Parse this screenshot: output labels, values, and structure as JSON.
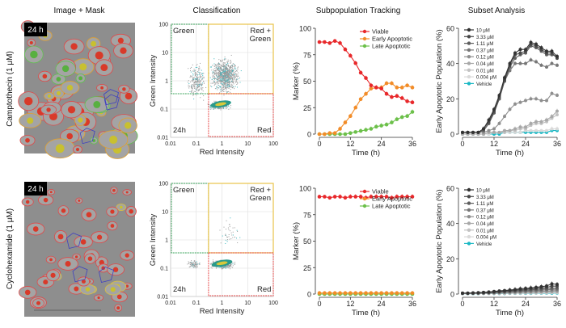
{
  "column_titles": [
    "Image + Mask",
    "Classification",
    "Subpopulation Tracking",
    "Subset Analysis"
  ],
  "rows": [
    {
      "label": "Camptothecin (1 μM)",
      "image_badge": "24 h"
    },
    {
      "label": "Cyclohexamide (1 μM)",
      "image_badge": "24 h"
    }
  ],
  "colors": {
    "viable": "#e8282b",
    "early": "#f28c28",
    "late": "#6cc04a",
    "vehicle": "#1ab8c4",
    "gate_green": "#3aa35a",
    "gate_yellow": "#e9c34a",
    "gate_red": "#e84a4a"
  },
  "chart_data": [
    {
      "type": "scatter",
      "panel": "Classification",
      "row": 0,
      "xlabel": "Red Intensity",
      "ylabel": "Green Intensity",
      "xscale": "log",
      "yscale": "log",
      "xlim": [
        0.01,
        100
      ],
      "ylim": [
        0.01,
        100
      ],
      "xticks": [
        "0.01",
        "0.1",
        "1",
        "10",
        "100"
      ],
      "yticks": [
        "0.01",
        "0.1",
        "1",
        "10",
        "100"
      ],
      "gates": {
        "green": "Green",
        "yellow": "Red + Green",
        "red": "Red"
      },
      "gate_thresholds": {
        "red": 0.3,
        "green": 0.35
      },
      "annotation": "24h",
      "grid": true
    },
    {
      "type": "scatter",
      "panel": "Classification",
      "row": 1,
      "xlabel": "Red Intensity",
      "ylabel": "Green Intensity",
      "xscale": "log",
      "yscale": "log",
      "xlim": [
        0.01,
        100
      ],
      "ylim": [
        0.01,
        100
      ],
      "xticks": [
        "0.01",
        "0.1",
        "1",
        "10",
        "100"
      ],
      "yticks": [
        "0.01",
        "0.1",
        "1",
        "10",
        "100"
      ],
      "gates": {
        "green": "Green",
        "yellow": "Red + Green",
        "red": "Red"
      },
      "gate_thresholds": {
        "red": 0.3,
        "green": 0.35
      },
      "annotation": "24h",
      "grid": true
    },
    {
      "type": "line",
      "panel": "Subpopulation Tracking",
      "row": 0,
      "xlabel": "Time (h)",
      "ylabel": "Marker (%)",
      "xlim": [
        0,
        36
      ],
      "ylim": [
        0,
        100
      ],
      "xticks": [
        0,
        12,
        24,
        36
      ],
      "yticks": [
        0,
        25,
        50,
        75,
        100
      ],
      "legend": "top-right",
      "x": [
        0,
        2,
        4,
        6,
        8,
        10,
        12,
        14,
        16,
        18,
        20,
        22,
        24,
        26,
        28,
        30,
        32,
        34,
        36
      ],
      "series": [
        {
          "name": "Viable",
          "color": "#e8282b",
          "values": [
            87,
            87,
            86,
            88,
            86,
            80,
            74,
            67,
            58,
            53,
            46,
            44,
            43,
            38,
            35,
            36,
            34,
            31,
            30
          ]
        },
        {
          "name": "Early Apoptotic",
          "color": "#f28c28",
          "values": [
            0,
            0,
            1,
            1,
            5,
            11,
            17,
            25,
            33,
            38,
            43,
            44,
            44,
            48,
            48,
            44,
            44,
            46,
            44
          ]
        },
        {
          "name": "Late Apoptotic",
          "color": "#6cc04a",
          "values": [
            0,
            0,
            0,
            0,
            0,
            0,
            1,
            2,
            3,
            4,
            5,
            7,
            8,
            9,
            11,
            14,
            16,
            17,
            21
          ]
        }
      ]
    },
    {
      "type": "line",
      "panel": "Subpopulation Tracking",
      "row": 1,
      "xlabel": "Time (h)",
      "ylabel": "Marker (%)",
      "xlim": [
        0,
        36
      ],
      "ylim": [
        0,
        100
      ],
      "xticks": [
        0,
        12,
        24,
        36
      ],
      "yticks": [
        0,
        25,
        50,
        75,
        100
      ],
      "legend": "top-right",
      "x": [
        0,
        2,
        4,
        6,
        8,
        10,
        12,
        14,
        16,
        18,
        20,
        22,
        24,
        26,
        28,
        30,
        32,
        34,
        36
      ],
      "series": [
        {
          "name": "Viable",
          "color": "#e8282b",
          "values": [
            92,
            92,
            91,
            92,
            92,
            91,
            92,
            92,
            92,
            91,
            92,
            92,
            92,
            92,
            91,
            92,
            92,
            92,
            92
          ]
        },
        {
          "name": "Early Apoptotic",
          "color": "#f28c28",
          "values": [
            1,
            1,
            1,
            1,
            1,
            1,
            1,
            1,
            1,
            1,
            1,
            1,
            1,
            1,
            1,
            1,
            1,
            1,
            1
          ]
        },
        {
          "name": "Late Apoptotic",
          "color": "#6cc04a",
          "values": [
            0,
            0,
            0,
            0,
            0,
            0,
            0,
            0,
            0,
            0,
            0,
            0,
            0,
            0,
            0,
            0,
            0,
            0,
            0
          ]
        }
      ]
    },
    {
      "type": "line",
      "panel": "Subset Analysis",
      "row": 0,
      "xlabel": "Time (h)",
      "ylabel": "Early Apoptotic Population (%)",
      "xlim": [
        0,
        36
      ],
      "ylim": [
        0,
        60
      ],
      "xticks": [
        0,
        12,
        24,
        36
      ],
      "yticks": [
        0,
        20,
        40,
        60
      ],
      "legend": "top-left",
      "x": [
        0,
        2,
        4,
        6,
        8,
        10,
        12,
        14,
        16,
        18,
        20,
        22,
        24,
        26,
        28,
        30,
        32,
        34,
        36
      ],
      "series": [
        {
          "name": "10 μM",
          "color": "#333333",
          "values": [
            1,
            1,
            1,
            1,
            3,
            8,
            14,
            22,
            32,
            40,
            46,
            48,
            48,
            52,
            51,
            49,
            47,
            47,
            44
          ]
        },
        {
          "name": "3.33 μM",
          "color": "#484848",
          "values": [
            1,
            1,
            1,
            1,
            3,
            7,
            13,
            21,
            31,
            39,
            45,
            46,
            47,
            51,
            50,
            48,
            46,
            46,
            43
          ]
        },
        {
          "name": "1.11 μM",
          "color": "#5e5e5e",
          "values": [
            1,
            1,
            1,
            1,
            2,
            6,
            12,
            20,
            30,
            38,
            43,
            45,
            46,
            50,
            49,
            47,
            45,
            45,
            44
          ]
        },
        {
          "name": "0.37 μM",
          "color": "#777777",
          "values": [
            1,
            1,
            1,
            1,
            2,
            6,
            12,
            20,
            30,
            36,
            40,
            40,
            40,
            42,
            41,
            39,
            38,
            40,
            39
          ]
        },
        {
          "name": "0.12 μM",
          "color": "#8f8f8f",
          "values": [
            1,
            1,
            1,
            1,
            1,
            2,
            3,
            6,
            10,
            14,
            17,
            18,
            19,
            20,
            20,
            19,
            19,
            23,
            22
          ]
        },
        {
          "name": "0.04 μM",
          "color": "#a8a8a8",
          "values": [
            0,
            0,
            0,
            0,
            0,
            1,
            1,
            1,
            2,
            2,
            3,
            4,
            4,
            6,
            7,
            7,
            8,
            10,
            13
          ]
        },
        {
          "name": "0.01 μM",
          "color": "#c2c2c2",
          "values": [
            0,
            0,
            0,
            0,
            0,
            1,
            1,
            1,
            1,
            2,
            2,
            3,
            3,
            5,
            6,
            6,
            7,
            9,
            11
          ]
        },
        {
          "name": "0.004 μM",
          "color": "#dadada",
          "values": [
            0,
            0,
            0,
            0,
            0,
            0,
            1,
            1,
            1,
            1,
            1,
            1,
            2,
            2,
            2,
            2,
            2,
            3,
            3
          ]
        },
        {
          "name": "Vehicle",
          "color": "#1ab8c4",
          "values": [
            0,
            0,
            0,
            0,
            0,
            0,
            0,
            0,
            1,
            1,
            1,
            1,
            1,
            1,
            1,
            1,
            1,
            2,
            2
          ]
        }
      ]
    },
    {
      "type": "line",
      "panel": "Subset Analysis",
      "row": 1,
      "xlabel": "Time (h)",
      "ylabel": "Early Apoptotic Population (%)",
      "xlim": [
        0,
        36
      ],
      "ylim": [
        0,
        60
      ],
      "xticks": [
        0,
        12,
        24,
        36
      ],
      "yticks": [
        0,
        20,
        40,
        60
      ],
      "legend": "top-left",
      "x": [
        0,
        2,
        4,
        6,
        8,
        10,
        12,
        14,
        16,
        18,
        20,
        22,
        24,
        26,
        28,
        30,
        32,
        34,
        36
      ],
      "series": [
        {
          "name": "10 μM",
          "color": "#333333",
          "values": [
            0.5,
            0.5,
            0.7,
            0.8,
            1,
            1.2,
            1.5,
            1.8,
            2,
            2.3,
            2.6,
            3,
            3.2,
            3.5,
            3.8,
            4.2,
            4.6,
            5.8,
            5.5
          ]
        },
        {
          "name": "3.33 μM",
          "color": "#484848",
          "values": [
            0.5,
            0.5,
            0.6,
            0.7,
            0.9,
            1,
            1.3,
            1.5,
            1.7,
            2,
            2.2,
            2.5,
            2.7,
            3,
            3.2,
            3.5,
            3.8,
            4.5,
            4.5
          ]
        },
        {
          "name": "1.11 μM",
          "color": "#5e5e5e",
          "values": [
            0.5,
            0.5,
            0.5,
            0.6,
            0.7,
            0.9,
            1,
            1.2,
            1.4,
            1.6,
            1.8,
            2,
            2.2,
            2.4,
            2.6,
            2.8,
            3,
            3.3,
            3.4
          ]
        },
        {
          "name": "0.37 μM",
          "color": "#777777",
          "values": [
            0.4,
            0.4,
            0.5,
            0.5,
            0.6,
            0.7,
            0.8,
            1,
            1.1,
            1.3,
            1.4,
            1.6,
            1.7,
            1.9,
            2,
            2.2,
            2.4,
            2.6,
            2.7
          ]
        },
        {
          "name": "0.12 μM",
          "color": "#8f8f8f",
          "values": [
            0.4,
            0.4,
            0.4,
            0.5,
            0.5,
            0.6,
            0.7,
            0.8,
            0.9,
            1,
            1.1,
            1.2,
            1.3,
            1.4,
            1.5,
            1.6,
            1.7,
            1.9,
            2
          ]
        },
        {
          "name": "0.04 μM",
          "color": "#a8a8a8",
          "values": [
            0.3,
            0.3,
            0.4,
            0.4,
            0.4,
            0.5,
            0.5,
            0.6,
            0.7,
            0.7,
            0.8,
            0.9,
            1,
            1,
            1.1,
            1.2,
            1.3,
            1.4,
            1.5
          ]
        },
        {
          "name": "0.01 μM",
          "color": "#c2c2c2",
          "values": [
            0.3,
            0.3,
            0.3,
            0.3,
            0.4,
            0.4,
            0.4,
            0.5,
            0.5,
            0.6,
            0.6,
            0.7,
            0.7,
            0.8,
            0.8,
            0.9,
            1,
            1,
            1.1
          ]
        },
        {
          "name": "0.004 μM",
          "color": "#dadada",
          "values": [
            0.2,
            0.2,
            0.3,
            0.3,
            0.3,
            0.3,
            0.4,
            0.4,
            0.4,
            0.5,
            0.5,
            0.5,
            0.6,
            0.6,
            0.6,
            0.7,
            0.7,
            0.8,
            0.8
          ]
        },
        {
          "name": "Vehicle",
          "color": "#1ab8c4",
          "values": [
            0.2,
            0.2,
            0.2,
            0.2,
            0.3,
            0.3,
            0.3,
            0.3,
            0.3,
            0.4,
            0.4,
            0.4,
            0.4,
            0.4,
            0.5,
            0.5,
            0.5,
            0.5,
            0.6
          ]
        }
      ]
    }
  ]
}
